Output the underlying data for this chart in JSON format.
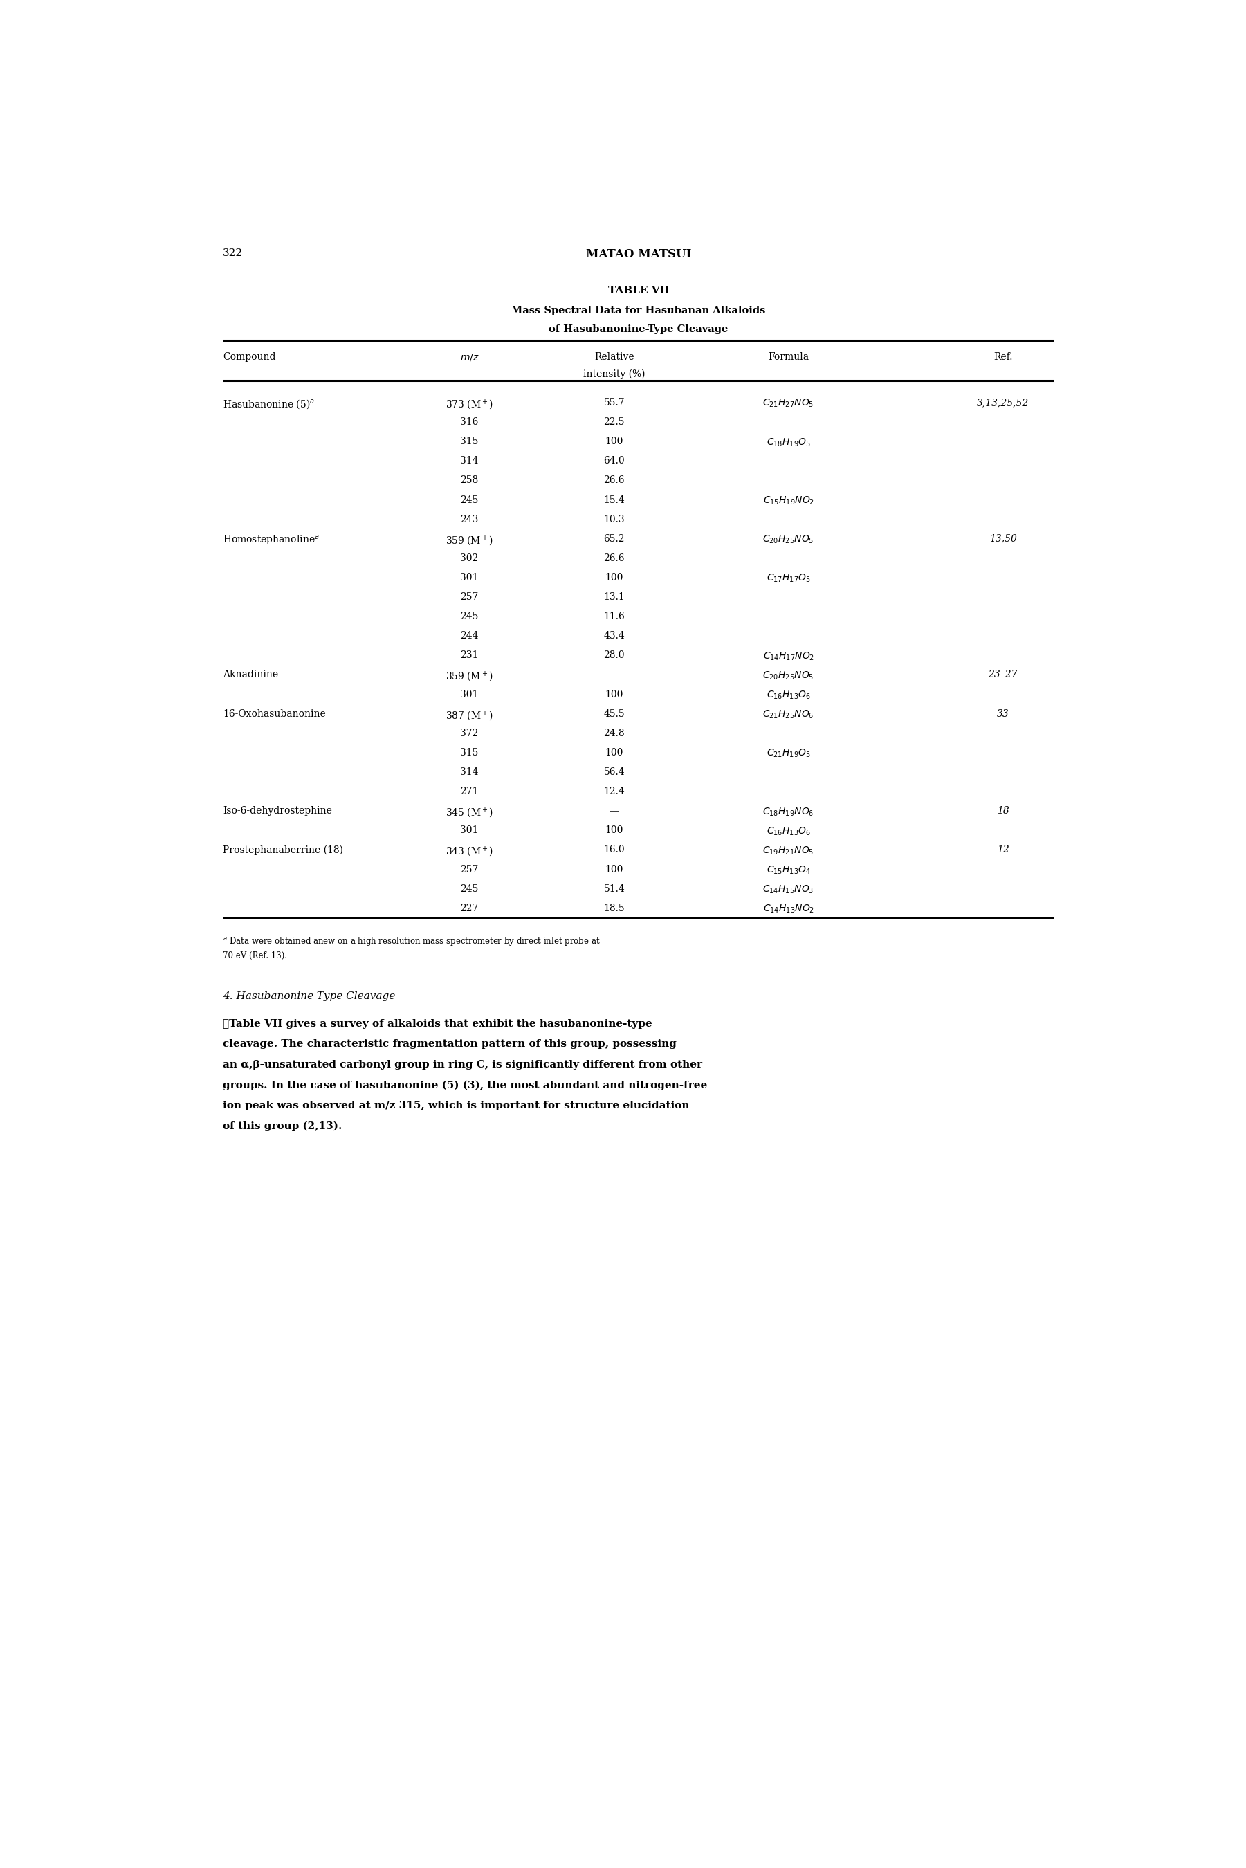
{
  "page_number": "322",
  "header": "MATAO MATSUI",
  "table_title_line1": "TABLE VII",
  "table_title_line2": "Mass Spectral Data for Hasubanan Alkaloids",
  "table_title_line3": "of Hasubanonine-Type Cleavage",
  "table_rows": [
    [
      "Hasubanonine (5)$^a$",
      "373 (M$^+$)",
      "55.7",
      "$C_{21}H_{27}NO_5$",
      "3,13,25,52"
    ],
    [
      "",
      "316",
      "22.5",
      "",
      ""
    ],
    [
      "",
      "315",
      "100",
      "$C_{18}H_{19}O_5$",
      ""
    ],
    [
      "",
      "314",
      "64.0",
      "",
      ""
    ],
    [
      "",
      "258",
      "26.6",
      "",
      ""
    ],
    [
      "",
      "245",
      "15.4",
      "$C_{15}H_{19}NO_2$",
      ""
    ],
    [
      "",
      "243",
      "10.3",
      "",
      ""
    ],
    [
      "Homostephanoline$^a$",
      "359 (M$^+$)",
      "65.2",
      "$C_{20}H_{25}NO_5$",
      "13,50"
    ],
    [
      "",
      "302",
      "26.6",
      "",
      ""
    ],
    [
      "",
      "301",
      "100",
      "$C_{17}H_{17}O_5$",
      ""
    ],
    [
      "",
      "257",
      "13.1",
      "",
      ""
    ],
    [
      "",
      "245",
      "11.6",
      "",
      ""
    ],
    [
      "",
      "244",
      "43.4",
      "",
      ""
    ],
    [
      "",
      "231",
      "28.0",
      "$C_{14}H_{17}NO_2$",
      ""
    ],
    [
      "Aknadinine",
      "359 (M$^+$)",
      "—",
      "$C_{20}H_{25}NO_5$",
      "23–27"
    ],
    [
      "",
      "301",
      "100",
      "$C_{16}H_{13}O_6$",
      ""
    ],
    [
      "16-Oxohasubanonine",
      "387 (M$^+$)",
      "45.5",
      "$C_{21}H_{25}NO_6$",
      "33"
    ],
    [
      "",
      "372",
      "24.8",
      "",
      ""
    ],
    [
      "",
      "315",
      "100",
      "$C_{21}H_{19}O_5$",
      ""
    ],
    [
      "",
      "314",
      "56.4",
      "",
      ""
    ],
    [
      "",
      "271",
      "12.4",
      "",
      ""
    ],
    [
      "Iso-6-dehydrostephine",
      "345 (M$^+$)",
      "—",
      "$C_{18}H_{19}NO_6$",
      "18"
    ],
    [
      "",
      "301",
      "100",
      "$C_{16}H_{13}O_6$",
      ""
    ],
    [
      "Prostephanaberrine (18)",
      "343 (M$^+$)",
      "16.0",
      "$C_{19}H_{21}NO_5$",
      "12"
    ],
    [
      "",
      "257",
      "100",
      "$C_{15}H_{13}O_4$",
      ""
    ],
    [
      "",
      "245",
      "51.4",
      "$C_{14}H_{15}NO_3$",
      ""
    ],
    [
      "",
      "227",
      "18.5",
      "$C_{14}H_{13}NO_2$",
      ""
    ]
  ],
  "footnote_line1": "$^a$ Data were obtained anew on a high resolution mass spectrometer by direct inlet probe at",
  "footnote_line2": "70 eV (Ref. 13).",
  "section_header": "4. Hasubanonine-Type Cleavage",
  "body_text_parts": [
    {
      "text": "\tTable VII gives a survey of alkaloids that exhibit the hasubanonine-type cleavage. The characteristic fragmentation pattern of this group, possessing an ",
      "bold": false
    },
    {
      "text": "α,β",
      "bold": false
    },
    {
      "text": "-unsaturated carbonyl group in ring C, is significantly different from other groups. In the case of hasubanonine (",
      "bold": false
    },
    {
      "text": "5",
      "bold": true
    },
    {
      "text": ") (",
      "bold": false
    },
    {
      "text": "3",
      "bold": false
    },
    {
      "text": "), the most abundant and nitrogen-free ion peak was observed at ",
      "bold": false
    },
    {
      "text": "m/z",
      "bold": false
    },
    {
      "text": " 315, which is important for structure elucidation of this group (2,13).",
      "bold": false
    }
  ],
  "bg_color": "#ffffff"
}
